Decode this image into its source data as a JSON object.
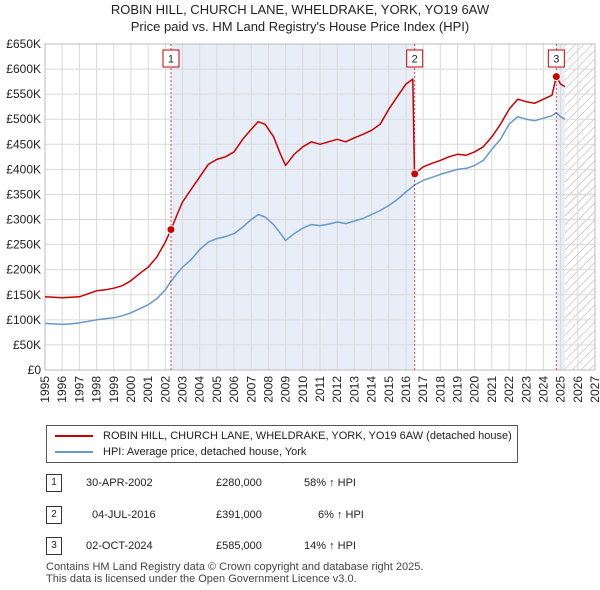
{
  "header": {
    "title": "ROBIN HILL, CHURCH LANE, WHELDRAKE, YORK, YO19 6AW",
    "subtitle": "Price paid vs. HM Land Registry's House Price Index (HPI)"
  },
  "legend": {
    "property_label": "ROBIN HILL, CHURCH LANE, WHELDRAKE, YORK, YO19 6AW (detached house)",
    "hpi_label": "HPI: Average price, detached house, York"
  },
  "colors": {
    "property": "#cc0000",
    "hpi": "#6699cc",
    "grid": "#d9d9d9",
    "purchase_band": "#e8eef8",
    "hatch": "#aaaaaa"
  },
  "transactions": [
    {
      "num": "1",
      "date": "30-APR-2002",
      "price": "£280,000",
      "hpi_change": "58% ↑ HPI"
    },
    {
      "num": "2",
      "date": "04-JUL-2016",
      "price": "£391,000",
      "hpi_change": "6% ↑ HPI"
    },
    {
      "num": "3",
      "date": "02-OCT-2024",
      "price": "£585,000",
      "hpi_change": "14% ↑ HPI"
    }
  ],
  "footer": {
    "line1": "Contains HM Land Registry data © Crown copyright and database right 2025.",
    "line2": "This data is licensed under the Open Government Licence v3.0."
  },
  "chart_data": {
    "type": "line",
    "xlim": [
      1995,
      2027
    ],
    "ylim": [
      0,
      650000
    ],
    "x_ticks": [
      1995,
      1996,
      1997,
      1998,
      1999,
      2000,
      2001,
      2002,
      2003,
      2004,
      2005,
      2006,
      2007,
      2008,
      2009,
      2010,
      2011,
      2012,
      2013,
      2014,
      2015,
      2016,
      2017,
      2018,
      2019,
      2020,
      2021,
      2022,
      2023,
      2024,
      2025,
      2026,
      2027
    ],
    "y_ticks": [
      0,
      50000,
      100000,
      150000,
      200000,
      250000,
      300000,
      350000,
      400000,
      450000,
      500000,
      550000,
      600000,
      650000
    ],
    "y_tick_labels": [
      "£0",
      "£50K",
      "£100K",
      "£150K",
      "£200K",
      "£250K",
      "£300K",
      "£350K",
      "£400K",
      "£450K",
      "£500K",
      "£550K",
      "£600K",
      "£650K"
    ],
    "grid": true,
    "forecast_from": 2025.25,
    "sales": [
      {
        "label": "1",
        "x": 2002.33,
        "y": 280000
      },
      {
        "label": "2",
        "x": 2016.51,
        "y": 391000
      },
      {
        "label": "3",
        "x": 2024.75,
        "y": 585000
      }
    ],
    "series": [
      {
        "name": "ROBIN HILL, CHURCH LANE, WHELDRAKE, YORK, YO19 6AW (detached house)",
        "points": [
          [
            1995,
            146000
          ],
          [
            1995.5,
            145000
          ],
          [
            1996,
            144000
          ],
          [
            1996.5,
            145000
          ],
          [
            1997,
            146000
          ],
          [
            1997.5,
            152000
          ],
          [
            1998,
            158000
          ],
          [
            1998.5,
            160000
          ],
          [
            1999,
            163000
          ],
          [
            1999.5,
            168000
          ],
          [
            2000,
            178000
          ],
          [
            2000.5,
            192000
          ],
          [
            2001,
            205000
          ],
          [
            2001.5,
            225000
          ],
          [
            2002,
            255000
          ],
          [
            2002.33,
            280000
          ],
          [
            2002.75,
            315000
          ],
          [
            2003,
            335000
          ],
          [
            2003.5,
            360000
          ],
          [
            2004,
            385000
          ],
          [
            2004.5,
            410000
          ],
          [
            2005,
            420000
          ],
          [
            2005.5,
            425000
          ],
          [
            2006,
            435000
          ],
          [
            2006.5,
            460000
          ],
          [
            2007,
            480000
          ],
          [
            2007.4,
            495000
          ],
          [
            2007.8,
            490000
          ],
          [
            2008.3,
            465000
          ],
          [
            2008.7,
            430000
          ],
          [
            2009,
            408000
          ],
          [
            2009.5,
            430000
          ],
          [
            2010,
            445000
          ],
          [
            2010.5,
            455000
          ],
          [
            2011,
            450000
          ],
          [
            2011.5,
            455000
          ],
          [
            2012,
            460000
          ],
          [
            2012.5,
            455000
          ],
          [
            2013,
            463000
          ],
          [
            2013.5,
            470000
          ],
          [
            2014,
            478000
          ],
          [
            2014.5,
            490000
          ],
          [
            2015,
            520000
          ],
          [
            2015.5,
            545000
          ],
          [
            2016,
            570000
          ],
          [
            2016.4,
            580000
          ],
          [
            2016.5,
            391000
          ],
          [
            2017,
            405000
          ],
          [
            2017.5,
            412000
          ],
          [
            2018,
            418000
          ],
          [
            2018.5,
            425000
          ],
          [
            2019,
            430000
          ],
          [
            2019.5,
            428000
          ],
          [
            2020,
            435000
          ],
          [
            2020.5,
            445000
          ],
          [
            2021,
            465000
          ],
          [
            2021.5,
            490000
          ],
          [
            2022,
            520000
          ],
          [
            2022.5,
            540000
          ],
          [
            2023,
            535000
          ],
          [
            2023.5,
            532000
          ],
          [
            2024,
            540000
          ],
          [
            2024.5,
            548000
          ],
          [
            2024.75,
            585000
          ],
          [
            2025,
            570000
          ],
          [
            2025.25,
            565000
          ]
        ]
      },
      {
        "name": "HPI: Average price, detached house, York",
        "points": [
          [
            1995,
            93000
          ],
          [
            1995.5,
            92000
          ],
          [
            1996,
            91000
          ],
          [
            1996.5,
            92000
          ],
          [
            1997,
            94000
          ],
          [
            1997.5,
            97000
          ],
          [
            1998,
            100000
          ],
          [
            1998.5,
            102000
          ],
          [
            1999,
            104000
          ],
          [
            1999.5,
            108000
          ],
          [
            2000,
            114000
          ],
          [
            2000.5,
            122000
          ],
          [
            2001,
            130000
          ],
          [
            2001.5,
            142000
          ],
          [
            2002,
            160000
          ],
          [
            2002.33,
            177000
          ],
          [
            2002.75,
            195000
          ],
          [
            2003,
            205000
          ],
          [
            2003.5,
            220000
          ],
          [
            2004,
            240000
          ],
          [
            2004.5,
            255000
          ],
          [
            2005,
            262000
          ],
          [
            2005.5,
            266000
          ],
          [
            2006,
            272000
          ],
          [
            2006.5,
            285000
          ],
          [
            2007,
            300000
          ],
          [
            2007.4,
            310000
          ],
          [
            2007.8,
            305000
          ],
          [
            2008.3,
            290000
          ],
          [
            2008.7,
            272000
          ],
          [
            2009,
            258000
          ],
          [
            2009.5,
            272000
          ],
          [
            2010,
            283000
          ],
          [
            2010.5,
            290000
          ],
          [
            2011,
            288000
          ],
          [
            2011.5,
            291000
          ],
          [
            2012,
            295000
          ],
          [
            2012.5,
            292000
          ],
          [
            2013,
            297000
          ],
          [
            2013.5,
            302000
          ],
          [
            2014,
            310000
          ],
          [
            2014.5,
            318000
          ],
          [
            2015,
            328000
          ],
          [
            2015.5,
            340000
          ],
          [
            2016,
            355000
          ],
          [
            2016.51,
            369000
          ],
          [
            2017,
            378000
          ],
          [
            2017.5,
            384000
          ],
          [
            2018,
            390000
          ],
          [
            2018.5,
            395000
          ],
          [
            2019,
            400000
          ],
          [
            2019.5,
            402000
          ],
          [
            2020,
            408000
          ],
          [
            2020.5,
            418000
          ],
          [
            2021,
            440000
          ],
          [
            2021.5,
            460000
          ],
          [
            2022,
            490000
          ],
          [
            2022.5,
            505000
          ],
          [
            2023,
            500000
          ],
          [
            2023.5,
            497000
          ],
          [
            2024,
            502000
          ],
          [
            2024.5,
            507000
          ],
          [
            2024.75,
            513000
          ],
          [
            2025,
            505000
          ],
          [
            2025.25,
            500000
          ]
        ]
      }
    ]
  }
}
